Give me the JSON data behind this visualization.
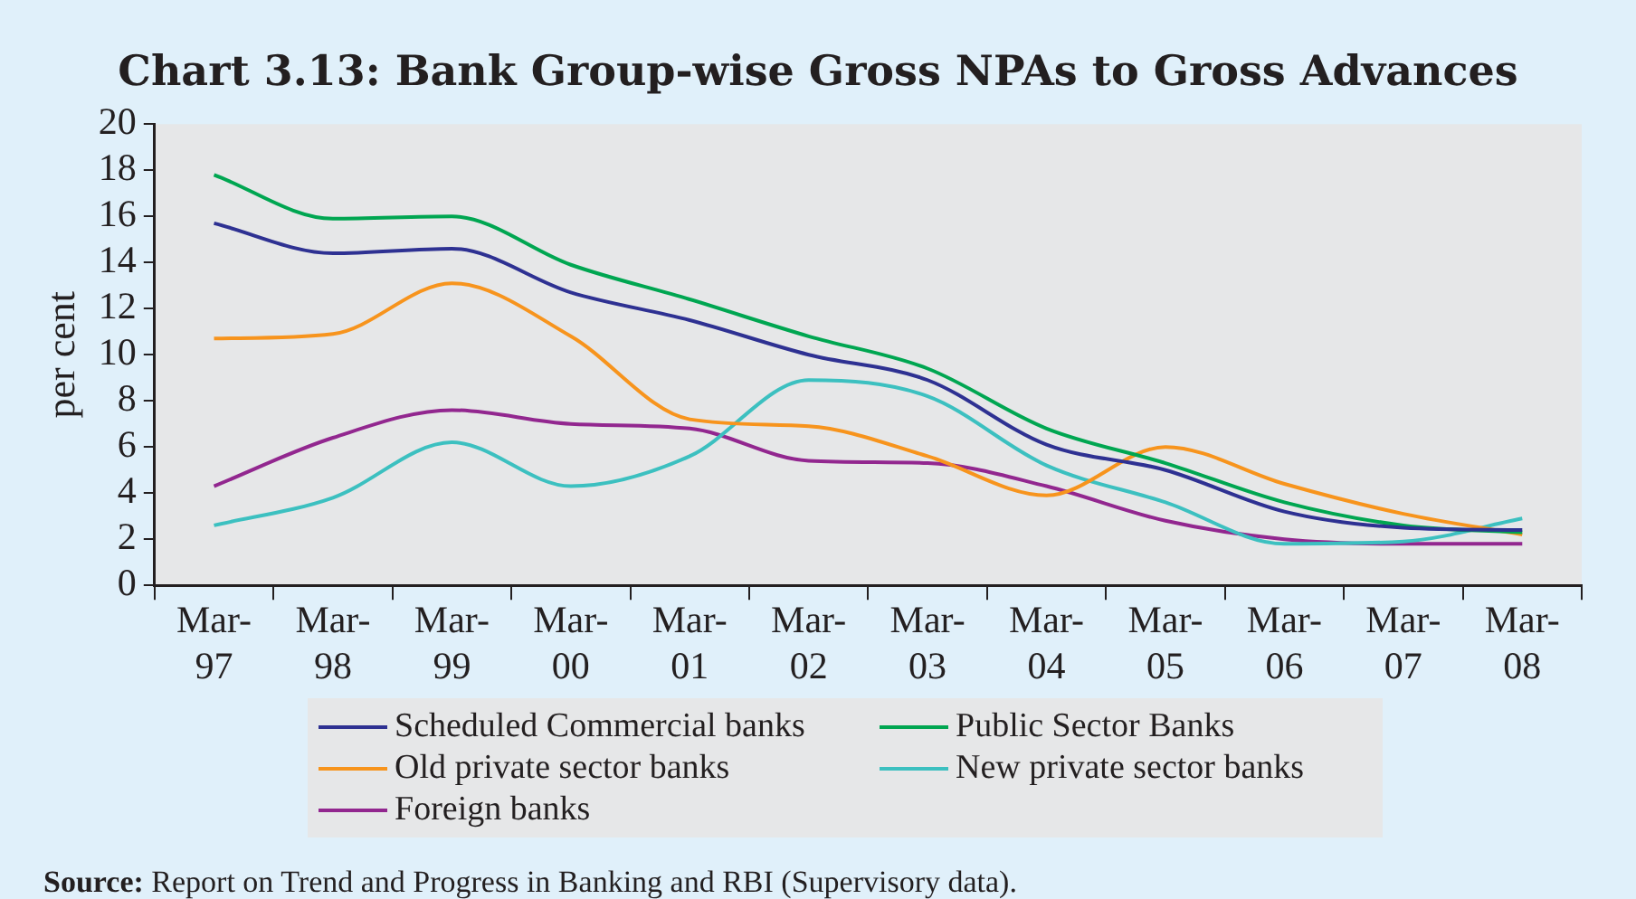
{
  "chart_data": {
    "type": "line",
    "title": "Chart 3.13: Bank Group-wise Gross NPAs to Gross Advances",
    "ylabel": "per cent",
    "categories": [
      "Mar-97",
      "Mar-98",
      "Mar-99",
      "Mar-00",
      "Mar-01",
      "Mar-02",
      "Mar-03",
      "Mar-04",
      "Mar-05",
      "Mar-06",
      "Mar-07",
      "Mar-08"
    ],
    "ylim": [
      0,
      20
    ],
    "yticks": [
      0,
      2,
      4,
      6,
      8,
      10,
      12,
      14,
      16,
      18,
      20
    ],
    "grid": false,
    "legend": "bottom",
    "marker": "none",
    "line_style": "solid",
    "series": [
      {
        "name": "Scheduled Commercial banks",
        "color": "#2e3192",
        "values": [
          15.7,
          14.4,
          14.6,
          12.7,
          11.5,
          10.0,
          8.9,
          6.1,
          5.0,
          3.2,
          2.5,
          2.4
        ]
      },
      {
        "name": "Public Sector Banks",
        "color": "#00a651",
        "values": [
          17.8,
          15.9,
          16.0,
          13.9,
          12.4,
          10.8,
          9.4,
          6.8,
          5.3,
          3.6,
          2.6,
          2.3
        ]
      },
      {
        "name": "Old private sector banks",
        "color": "#f7941d",
        "values": [
          10.7,
          10.9,
          13.1,
          10.8,
          7.2,
          6.9,
          5.6,
          3.9,
          6.0,
          4.4,
          3.1,
          2.2
        ]
      },
      {
        "name": "New private sector banks",
        "color": "#3cc0c0",
        "values": [
          2.6,
          3.8,
          6.2,
          4.3,
          5.6,
          8.9,
          8.2,
          5.2,
          3.6,
          1.8,
          1.9,
          2.9
        ]
      },
      {
        "name": "Foreign banks",
        "color": "#92278f",
        "values": [
          4.3,
          6.4,
          7.6,
          7.0,
          6.8,
          5.4,
          5.3,
          4.3,
          2.8,
          2.0,
          1.8,
          1.8
        ]
      }
    ],
    "annotations": [
      "Source: Report on Trend and Progress in Banking and RBI (Supervisory data)."
    ]
  }
}
